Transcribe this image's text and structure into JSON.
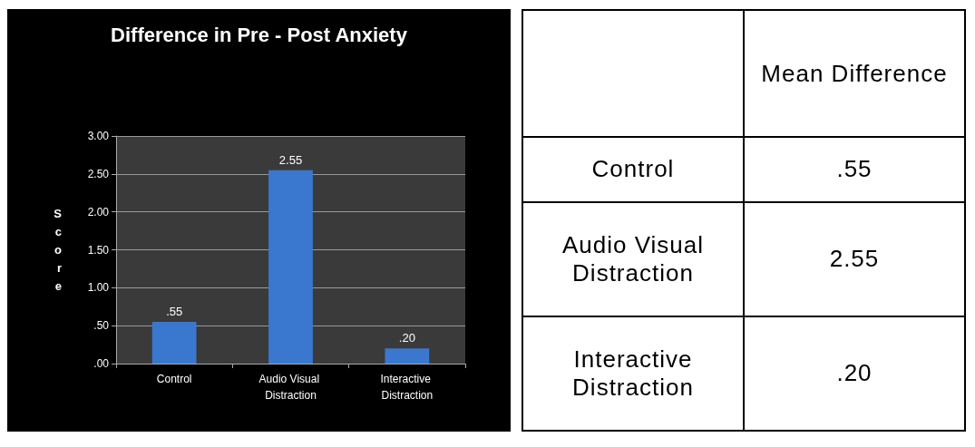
{
  "chart_data": {
    "type": "bar",
    "title": "Difference in Pre - Post Anxiety",
    "ylabel": "Score",
    "categories": [
      "Control",
      "Audio Visual Distraction",
      "Interactive Distraction"
    ],
    "values": [
      0.55,
      2.55,
      0.2
    ],
    "value_labels": [
      ".55",
      "2.55",
      ".20"
    ],
    "color": "#3a78d0",
    "ylim": [
      0,
      3
    ],
    "yticks": [
      {
        "value": 0,
        "label": ".00"
      },
      {
        "value": 0.5,
        "label": ".50"
      },
      {
        "value": 1,
        "label": "1.00"
      },
      {
        "value": 1.5,
        "label": "1.50"
      },
      {
        "value": 2,
        "label": "2.00"
      },
      {
        "value": 2.5,
        "label": "2.50"
      },
      {
        "value": 3,
        "label": "3.00"
      }
    ],
    "grid": "y",
    "annotations": [
      "Mean Difference"
    ]
  }
}
